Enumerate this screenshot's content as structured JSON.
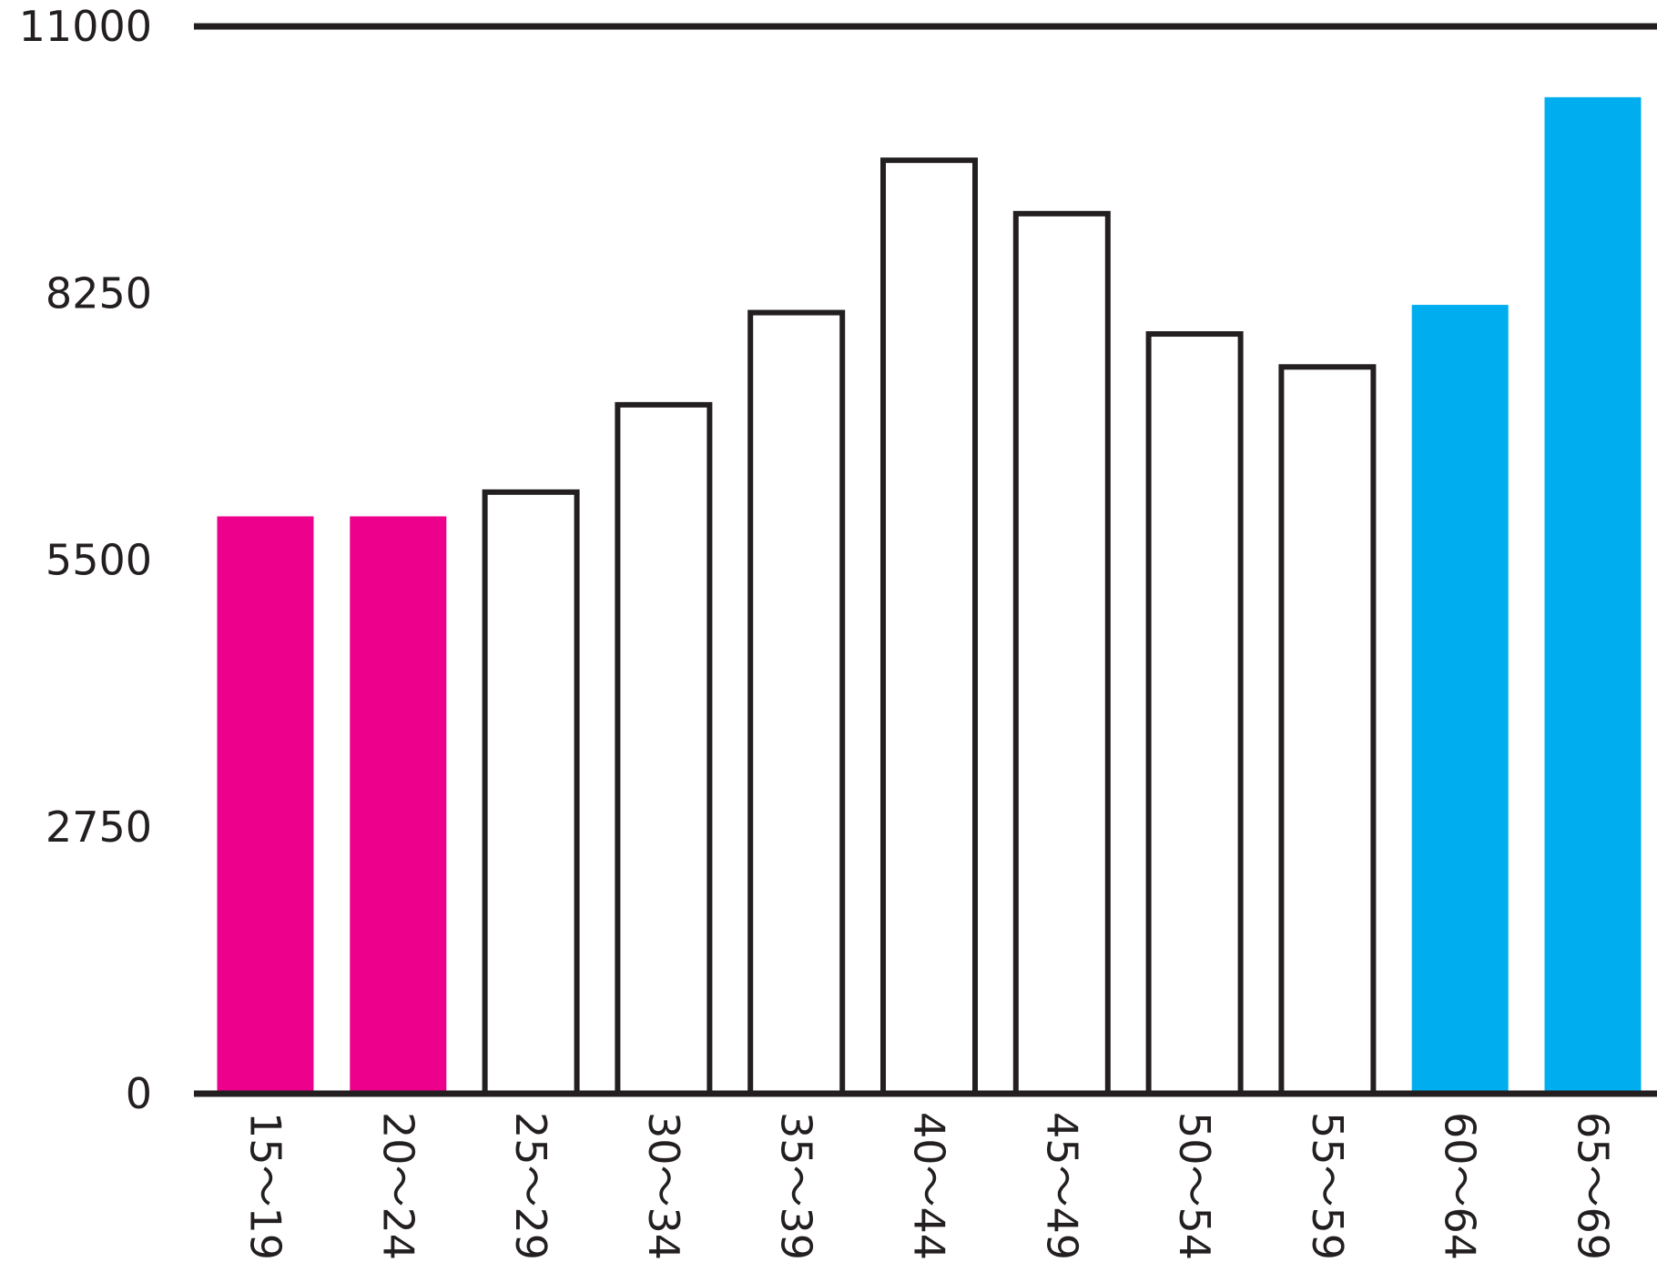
{
  "chart_data": {
    "type": "bar",
    "title": "",
    "xlabel": "",
    "ylabel": "",
    "ylim": [
      0,
      11000
    ],
    "yticks": [
      0,
      2750,
      5500,
      8250,
      11000
    ],
    "grid": false,
    "categories": [
      "15～19",
      "20～24",
      "25～29",
      "30～34",
      "35～39",
      "40～44",
      "45～49",
      "50～54",
      "55～59",
      "60～64",
      "65～69"
    ],
    "values": [
      5950,
      5950,
      6200,
      7100,
      8050,
      9620,
      9070,
      7830,
      7490,
      8130,
      10270
    ],
    "colors": {
      "highlight_young": "#ec008c",
      "highlight_senior": "#00aeef",
      "outline": "#231f20",
      "plain_fill": "#ffffff"
    },
    "bar_styles": [
      "pink",
      "pink",
      "outline",
      "outline",
      "outline",
      "outline",
      "outline",
      "outline",
      "outline",
      "blue",
      "blue"
    ]
  }
}
